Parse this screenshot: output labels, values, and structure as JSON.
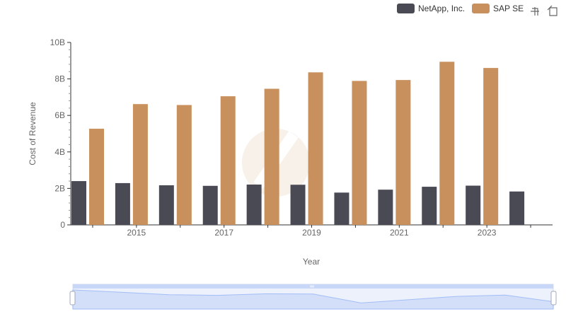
{
  "chart_data": {
    "type": "bar",
    "title": "",
    "xlabel": "Year",
    "ylabel": "Cost of Revenue",
    "x": [
      2014,
      2015,
      2016,
      2017,
      2018,
      2019,
      2020,
      2021,
      2022,
      2023,
      2024
    ],
    "x_tick_labels": [
      "2015",
      "2017",
      "2019",
      "2021",
      "2023"
    ],
    "y_tick_labels": [
      "0",
      "2B",
      "4B",
      "6B",
      "8B",
      "10B"
    ],
    "ylim": [
      0,
      10000000000
    ],
    "grid": false,
    "legend_position": "top-right",
    "series": [
      {
        "name": "NetApp, Inc.",
        "color": "#4a4a55",
        "values": [
          2400000000,
          2290000000,
          2170000000,
          2140000000,
          2210000000,
          2200000000,
          1770000000,
          1930000000,
          2090000000,
          2150000000,
          1830000000
        ]
      },
      {
        "name": "SAP SE",
        "color": "#c8905c",
        "values": [
          5270000000,
          6620000000,
          6570000000,
          7050000000,
          7460000000,
          8360000000,
          7890000000,
          7940000000,
          8940000000,
          8600000000,
          null
        ]
      }
    ]
  },
  "toolbar": {
    "icons": [
      "zoom-icon",
      "reset-icon"
    ]
  },
  "slider": {
    "fill_color": "#d9e3fb",
    "line_color": "#8fb0f7",
    "range_start": 0,
    "range_end": 1
  }
}
